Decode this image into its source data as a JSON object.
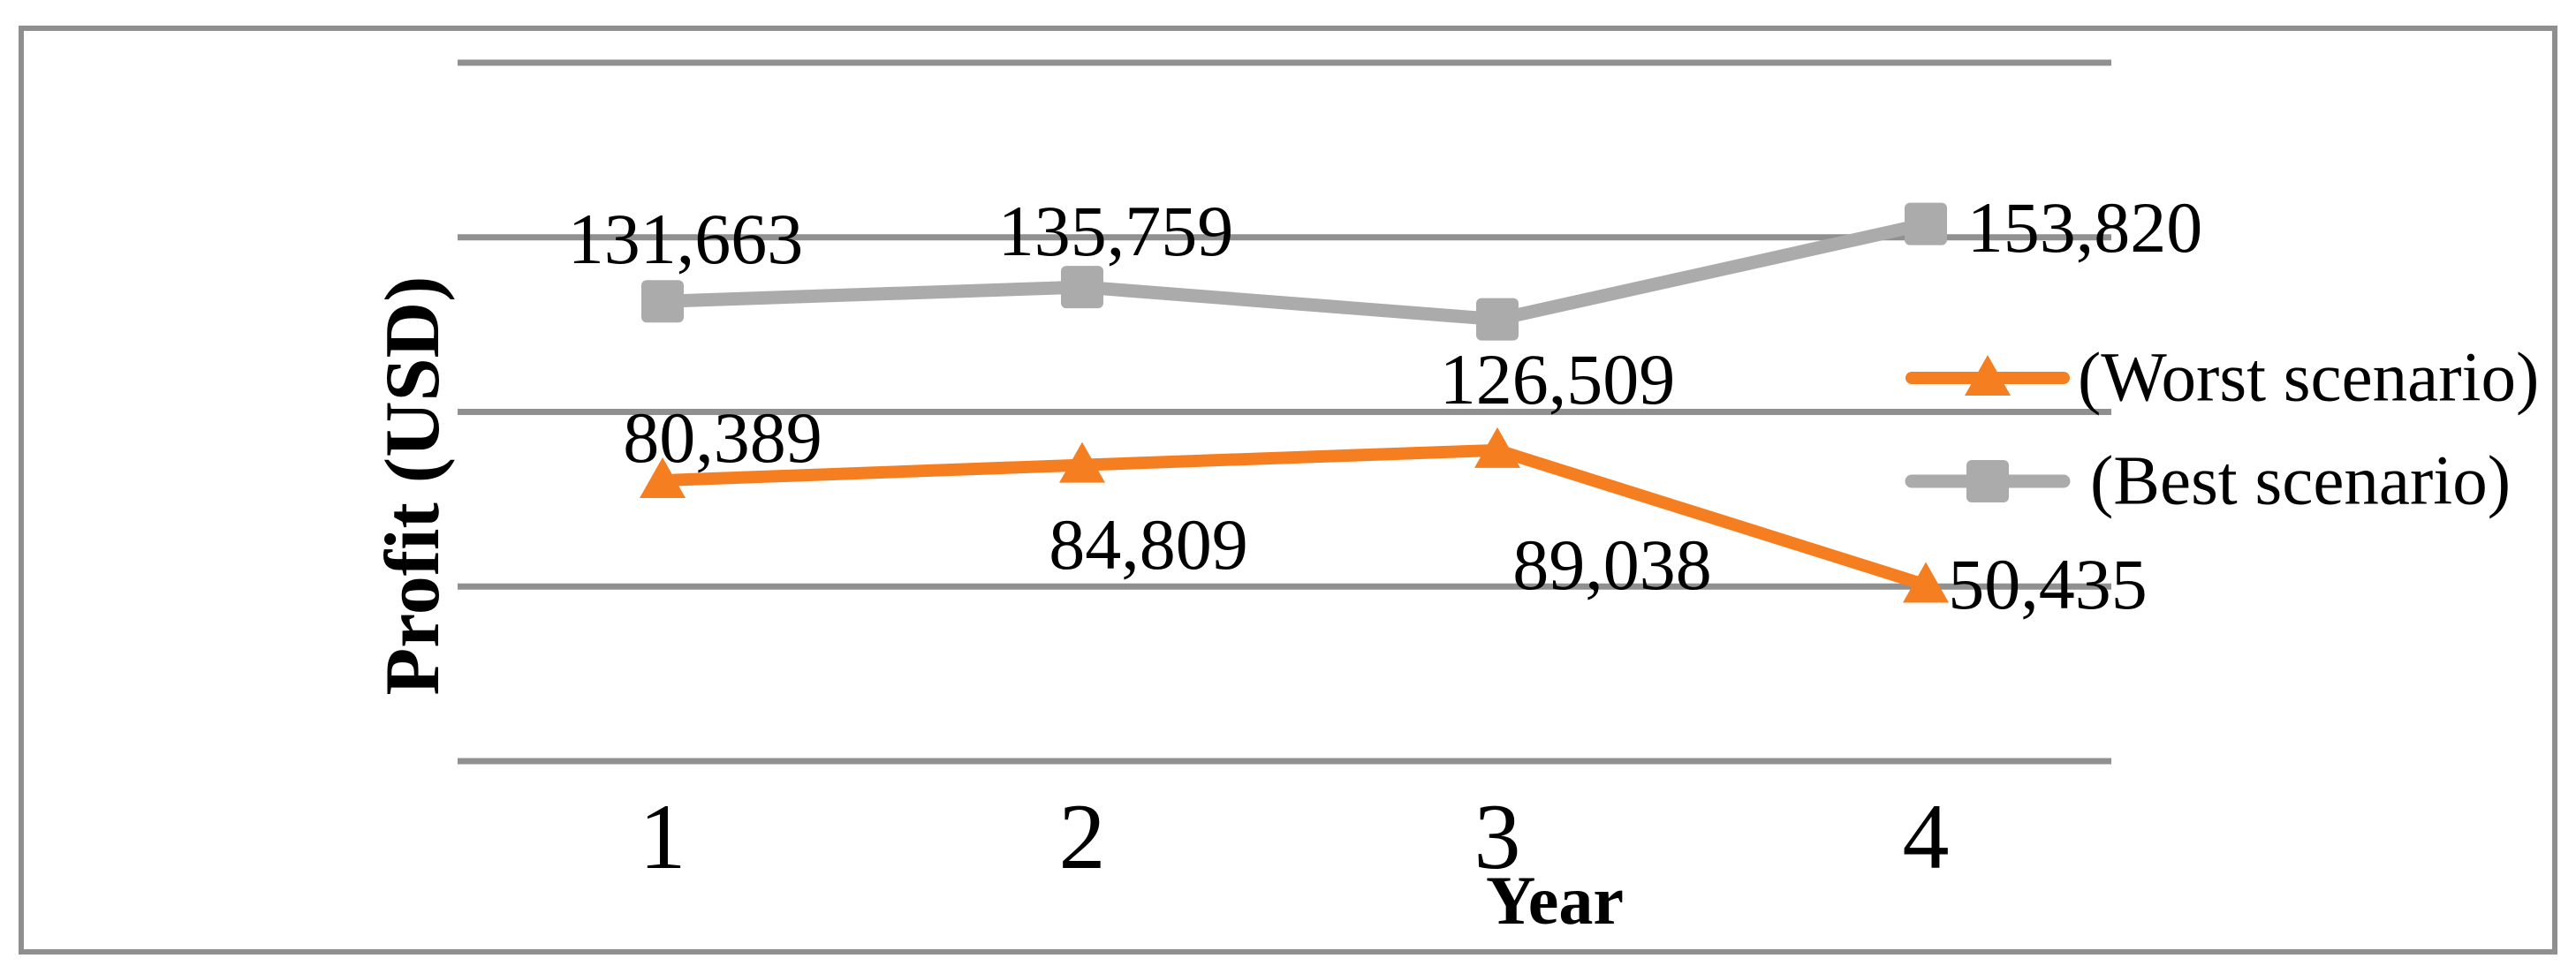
{
  "chart_data": {
    "type": "line",
    "title": "",
    "xlabel": "Year",
    "ylabel": "Profit (USD)",
    "categories": [
      "1",
      "2",
      "3",
      "4"
    ],
    "x_values": [
      1,
      2,
      3,
      4
    ],
    "ylim": [
      0,
      200000
    ],
    "y_gridline_values": [
      0,
      50000,
      100000,
      150000,
      200000
    ],
    "y_tick_labels_shown": false,
    "grid": "horizontal-only",
    "legend_position": "middle-right",
    "series": [
      {
        "name": "(Worst scenario)",
        "slug": "worst-scenario",
        "color": "#F57E21",
        "marker": "triangle",
        "line_width": 14,
        "values": [
          80389,
          84809,
          89038,
          50435
        ],
        "labels": [
          "80,389",
          "84,809",
          "89,038",
          "50,435"
        ]
      },
      {
        "name": "(Best scenario)",
        "slug": "best-scenario",
        "color": "#ABABAB",
        "marker": "square",
        "line_width": 15,
        "values": [
          131663,
          135759,
          126509,
          153820
        ],
        "labels": [
          "131,663",
          "135,759",
          "126,509",
          "153,820"
        ]
      }
    ],
    "colors": {
      "gridline": "#909090",
      "frame_border": "#8F8F8F",
      "text": "#000000",
      "background": "#FFFFFF"
    }
  }
}
